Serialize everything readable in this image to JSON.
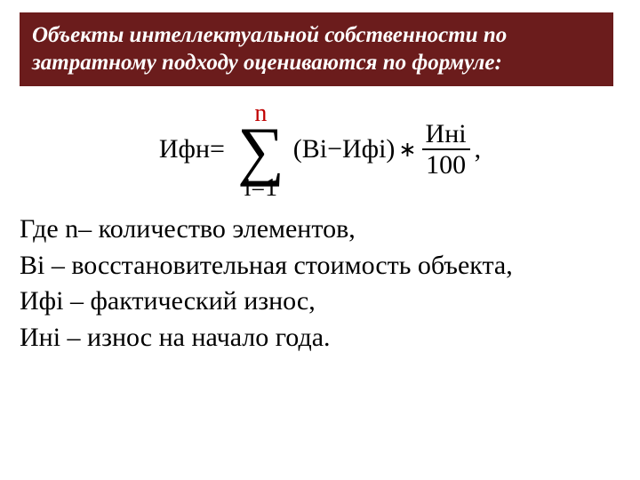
{
  "colors": {
    "title_bg": "#6b1c1c",
    "title_fg": "#ffffff",
    "text": "#000000",
    "accent_n": "#c00000",
    "background": "#ffffff"
  },
  "typography": {
    "title_fontsize_pt": 19,
    "title_bold": true,
    "title_italic": true,
    "body_fontsize_pt": 23,
    "formula_fontsize_pt": 23,
    "sigma_fontsize_pt": 56,
    "font_family": "Times New Roman"
  },
  "title": "Объекты интеллектуальной собственности по затратному подходу оцениваются по формуле:",
  "formula": {
    "lhs": "Ифн=",
    "sum_upper": "n",
    "sum_symbol": "∑",
    "sum_lower": "i=1",
    "paren_term": "(Вi−Ифi)",
    "star": "∗",
    "fraction_num": "Инi",
    "fraction_den": "100",
    "tail": ","
  },
  "definitions": {
    "line1": "Где n– количество элементов,",
    "line2": "Вi – восстановительная стоимость объекта,",
    "line3": "Ифi – фактический износ,",
    "line4": "Инi – износ на начало года."
  }
}
